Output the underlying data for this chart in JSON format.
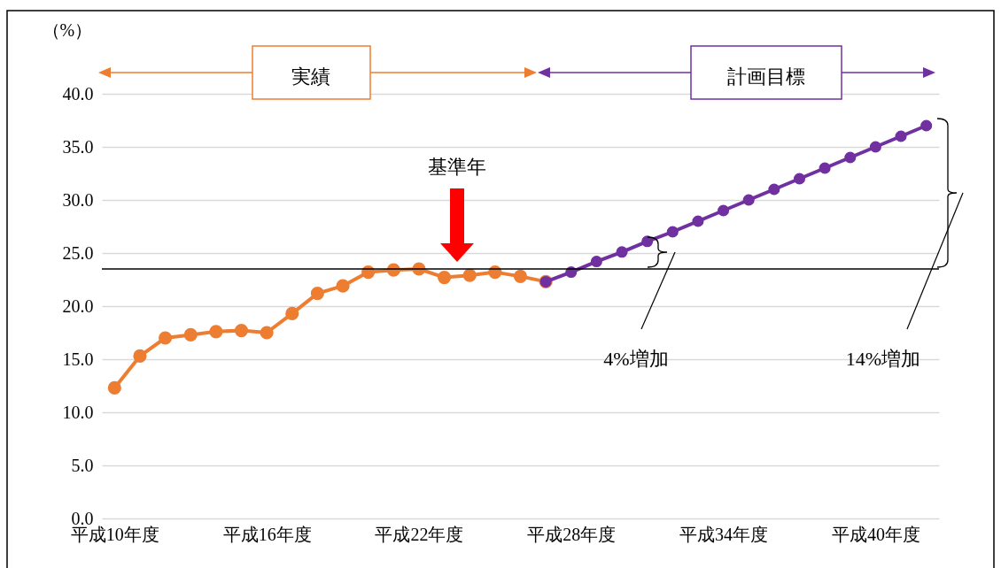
{
  "chart_data": {
    "type": "line",
    "ylabel": "（%）",
    "annotations": [
      "実績",
      "計画目標",
      "基準年",
      "4%増加",
      "14%増加"
    ],
    "categories": [
      "平成10年度",
      null,
      null,
      null,
      null,
      null,
      "平成16年度",
      null,
      null,
      null,
      null,
      null,
      "平成22年度",
      null,
      null,
      null,
      null,
      null,
      "平成28年度",
      null,
      null,
      null,
      null,
      null,
      "平成34年度",
      null,
      null,
      null,
      null,
      null,
      "平成40年度",
      null,
      null
    ],
    "series": [
      {
        "color": "#ed7d31",
        "values": [
          12.3,
          15.3,
          17.0,
          17.3,
          17.6,
          17.7,
          17.5,
          19.3,
          21.2,
          21.9,
          23.2,
          23.4,
          23.5,
          22.7,
          22.9,
          23.2,
          22.8,
          22.3,
          null,
          null,
          null,
          null,
          null,
          null,
          null,
          null,
          null,
          null,
          null,
          null,
          null,
          null,
          null
        ]
      },
      {
        "color": "#7030a0",
        "values": [
          null,
          null,
          null,
          null,
          null,
          null,
          null,
          null,
          null,
          null,
          null,
          null,
          null,
          null,
          null,
          null,
          null,
          22.3,
          23.2,
          24.2,
          25.1,
          26.1,
          27.0,
          28.0,
          29.0,
          30.0,
          31.0,
          32.0,
          33.0,
          34.0,
          35.0,
          36.0,
          37.0
        ]
      }
    ],
    "ylim": [
      0,
      40
    ],
    "yticks": [
      {
        "value": 0,
        "label": "0.0"
      },
      {
        "value": 5,
        "label": "5.0"
      },
      {
        "value": 10,
        "label": "10.0"
      },
      {
        "value": 15,
        "label": "15.0"
      },
      {
        "value": 20,
        "label": "20.0"
      },
      {
        "value": 25,
        "label": "25.0"
      },
      {
        "value": 30,
        "label": "30.0"
      },
      {
        "value": 35,
        "label": "35.0"
      },
      {
        "value": 40,
        "label": "40.0"
      }
    ],
    "grid": "y",
    "marker": "circle",
    "line_style": "solid",
    "ref_lines": [
      {
        "axis": "y",
        "value": 23.5,
        "color": "#000000"
      }
    ]
  }
}
